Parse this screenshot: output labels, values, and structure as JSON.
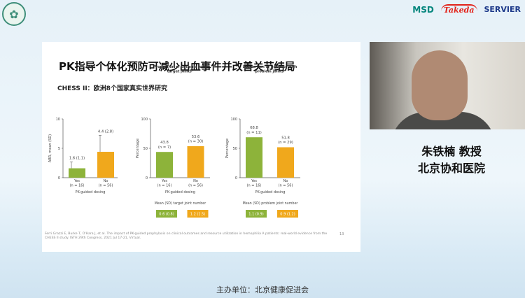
{
  "header": {
    "emblem_icon": "society-emblem",
    "sponsors": [
      "MSD",
      "Takeda",
      "SERVIER"
    ]
  },
  "slide": {
    "title": "PK指导个体化预防可减少出血事件并改善关节结局",
    "subtitle": "CHESS II：欧洲8个国家真实世界研究",
    "citation": "Ferri Grazzi E, Burke T, O'Hara J, et al. The impact of PK-guided prophylaxis on clinical outcomes and resource utilization in hemophilia A patients: real-world evidence from the CHESS II study. ISTH 29th Congress, 2021 Jul 17-21, Virtual.",
    "page_number": "13"
  },
  "chart_data": [
    {
      "type": "bar",
      "title": "ABRᵃ",
      "ylabel": "ABR, mean (SD)",
      "xlabel": "PK-guided dosing",
      "ylim": [
        0,
        10
      ],
      "yticks": [
        0,
        5,
        10
      ],
      "categories": [
        "Yes\n(n = 16)",
        "No\n(n = 56)"
      ],
      "values": [
        1.6,
        4.4
      ],
      "errors": [
        1.1,
        2.8
      ],
      "labels": [
        "1.6 (1.1)",
        "4.4 (2.8)"
      ],
      "colors": [
        "#8db33a",
        "#f0a81c"
      ]
    },
    {
      "type": "bar",
      "title": "Proportion of patients with target jointsᵃ",
      "ylabel": "Percentage",
      "xlabel": "PK-guided dosing",
      "ylim": [
        0,
        100
      ],
      "yticks": [
        0,
        50,
        100
      ],
      "categories": [
        "Yes\n(n = 16)",
        "No\n(n = 56)"
      ],
      "values": [
        43.8,
        53.6
      ],
      "labels": [
        "43.8\n(n = 7)",
        "53.6\n(n = 30)"
      ],
      "colors": [
        "#8db33a",
        "#f0a81c"
      ],
      "footer_label": "Mean (SD) target joint number",
      "footer_values": [
        "0.6 (0.8)",
        "1.2 (1.5)"
      ]
    },
    {
      "type": "bar",
      "title": "Proportion of patients with problem jointsᵃ",
      "ylabel": "Percentage",
      "xlabel": "PK-guided dosing",
      "ylim": [
        0,
        100
      ],
      "yticks": [
        0,
        50,
        100
      ],
      "categories": [
        "Yes\n(n = 16)",
        "No\n(n = 56)"
      ],
      "values": [
        68.8,
        51.8
      ],
      "labels": [
        "68.8\n(n = 11)",
        "51.8\n(n = 29)"
      ],
      "colors": [
        "#8db33a",
        "#f0a81c"
      ],
      "footer_label": "Mean (SD) problem joint number",
      "footer_values": [
        "1.1 (0.9)",
        "0.9 (1.2)"
      ]
    }
  ],
  "speaker": {
    "name": "朱铁楠 教授",
    "affiliation": "北京协和医院"
  },
  "organizer": "主办单位：北京健康促进会"
}
